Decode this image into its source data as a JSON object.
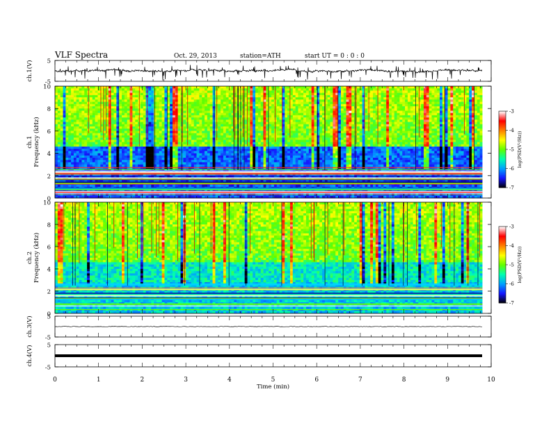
{
  "header": {
    "title": "VLF  Spectra",
    "date": "Oct. 29, 2013",
    "station": "station=ATH",
    "start_ut": "start  UT  =   0 : 0 : 0"
  },
  "chart_data": [
    {
      "type": "line",
      "panel": "ch1-waveform",
      "ylabel": "ch.1(V)",
      "ylim": [
        -5,
        5
      ],
      "y_tick_labels": [
        "5",
        "-5"
      ],
      "x_range_min": [
        0,
        10
      ],
      "note_level": "trace centered near 0 V with frequent negative spikes"
    },
    {
      "type": "heatmap",
      "panel": "ch1-spectrogram",
      "ylabel": "ch.1\nFrequency  (kHz)",
      "ylabel_lines": [
        "ch.1",
        "Frequency  (kHz)"
      ],
      "ylim": [
        0,
        10
      ],
      "y_tick_labels": [
        "0",
        "2",
        "4",
        "6",
        "8",
        "10"
      ],
      "x_range_min": [
        0,
        9.8
      ],
      "colorbar": {
        "label": "log(PSD(V²/Hz))",
        "range": [
          -7,
          -3
        ],
        "tick_labels": [
          "-3",
          "-4",
          "-5",
          "-6",
          "-7"
        ],
        "colors": [
          "#000000",
          "#1515ff",
          "#00a0ff",
          "#00ffb0",
          "#60ff00",
          "#ffff00",
          "#ff8000",
          "#ff0000",
          "#ffffff"
        ]
      },
      "bands": [
        {
          "f_from": 4.5,
          "f_to": 10,
          "level": -5.0,
          "description": "green/yellow broadband with red impulsive lines"
        },
        {
          "f_from": 2.8,
          "f_to": 4.5,
          "level": -6.0,
          "description": "dark blue/cyan band"
        },
        {
          "f_from": 0,
          "f_to": 2.8,
          "level": -6.3,
          "description": "horizontal line spectrum"
        }
      ]
    },
    {
      "type": "heatmap",
      "panel": "ch2-spectrogram",
      "ylabel_lines": [
        "ch.2",
        "Frequency  (kHz)"
      ],
      "ylim": [
        0,
        10
      ],
      "y_tick_labels": [
        "0",
        "2",
        "4",
        "6",
        "8",
        "10"
      ],
      "x_range_min": [
        0,
        9.8
      ],
      "colorbar": {
        "label": "log(PSD(V²/Hz))",
        "range": [
          -7,
          -3
        ],
        "tick_labels": [
          "-3",
          "-4",
          "-5",
          "-6",
          "-7"
        ]
      },
      "bands": [
        {
          "f_from": 4.5,
          "f_to": 10,
          "level": -5.0
        },
        {
          "f_from": 2.8,
          "f_to": 4.5,
          "level": -5.6
        },
        {
          "f_from": 0,
          "f_to": 2.8,
          "level": -5.8
        }
      ]
    },
    {
      "type": "line",
      "panel": "ch3-waveform",
      "ylabel": "ch.3(V)",
      "ylim": [
        -5,
        5
      ],
      "y_tick_labels": [
        "5",
        "-5"
      ],
      "constant_level": 0
    },
    {
      "type": "line",
      "panel": "ch4-waveform",
      "ylabel": "ch.4(V)",
      "ylim": [
        -5,
        5
      ],
      "y_tick_labels": [
        "5",
        "-5"
      ],
      "constant_level": 0
    }
  ],
  "x_axis": {
    "label": "Time  (min)",
    "range": [
      0,
      10
    ],
    "tick_labels": [
      "0",
      "1",
      "2",
      "3",
      "4",
      "5",
      "6",
      "7",
      "8",
      "9",
      "10"
    ]
  }
}
